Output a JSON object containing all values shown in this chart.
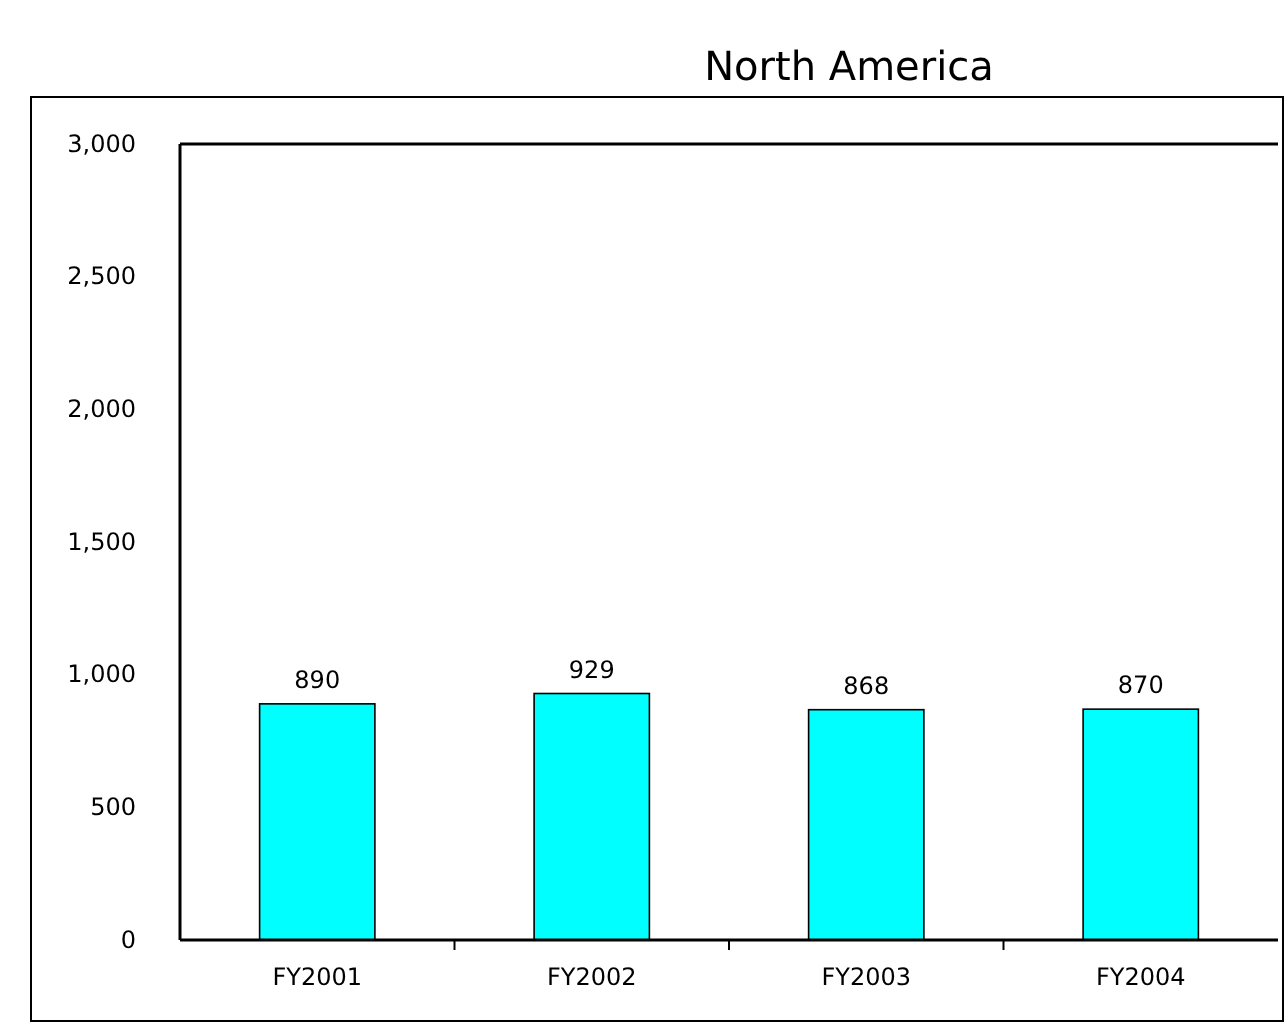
{
  "chart_data": {
    "type": "bar",
    "title": "North America",
    "categories": [
      "FY2001",
      "FY2002",
      "FY2003",
      "FY2004"
    ],
    "values": [
      890,
      929,
      868,
      870
    ],
    "color": "#00ffff",
    "ylim": [
      0,
      3000
    ],
    "yticks": [
      {
        "value": 0,
        "label": "0"
      },
      {
        "value": 500,
        "label": "500"
      },
      {
        "value": 1000,
        "label": "1,000"
      },
      {
        "value": 1500,
        "label": "1,500"
      },
      {
        "value": 2000,
        "label": "2,000"
      },
      {
        "value": 2500,
        "label": "2,500"
      },
      {
        "value": 3000,
        "label": "3,000"
      }
    ],
    "data_labels": true
  }
}
